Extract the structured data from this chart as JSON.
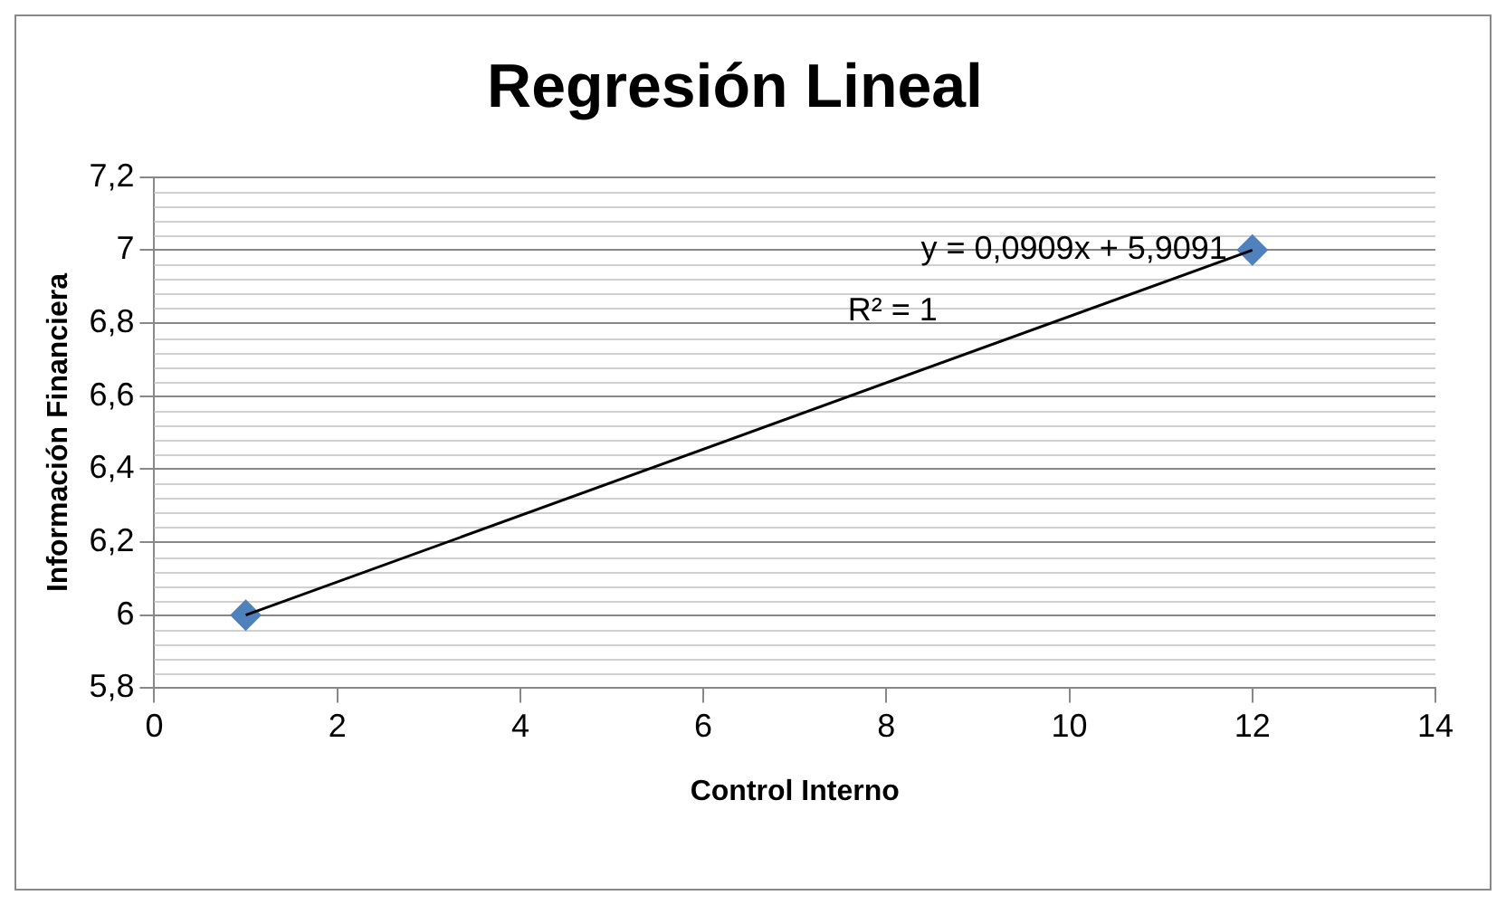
{
  "chart_data": {
    "type": "scatter",
    "title": "Regresión Lineal",
    "xlabel": "Control Interno",
    "ylabel": "Información Financiera",
    "x": [
      1,
      12
    ],
    "series": [
      {
        "type": "scatter",
        "color": "#4f81bd",
        "marker": "diamond",
        "values": [
          6,
          7
        ]
      },
      {
        "type": "line",
        "color": "#000000",
        "marker": "none",
        "line_style": "solid",
        "values": [
          6,
          7
        ]
      }
    ],
    "xlim": [
      0,
      14
    ],
    "xticks": [
      0,
      2,
      4,
      6,
      8,
      10,
      12,
      14
    ],
    "ylim": [
      5.8,
      7.2
    ],
    "yticks": [
      {
        "value": 5.8,
        "label": "5,8"
      },
      {
        "value": 6,
        "label": "6"
      },
      {
        "value": 6.2,
        "label": "6,2"
      },
      {
        "value": 6.4,
        "label": "6,4"
      },
      {
        "value": 6.6,
        "label": "6,6"
      },
      {
        "value": 6.8,
        "label": "6,8"
      },
      {
        "value": 7,
        "label": "7"
      },
      {
        "value": 7.2,
        "label": "7,2"
      }
    ],
    "annotations": [
      "y = 0,0909x + 5,9091",
      "R² = 1"
    ],
    "grid": "y",
    "legend": false
  }
}
